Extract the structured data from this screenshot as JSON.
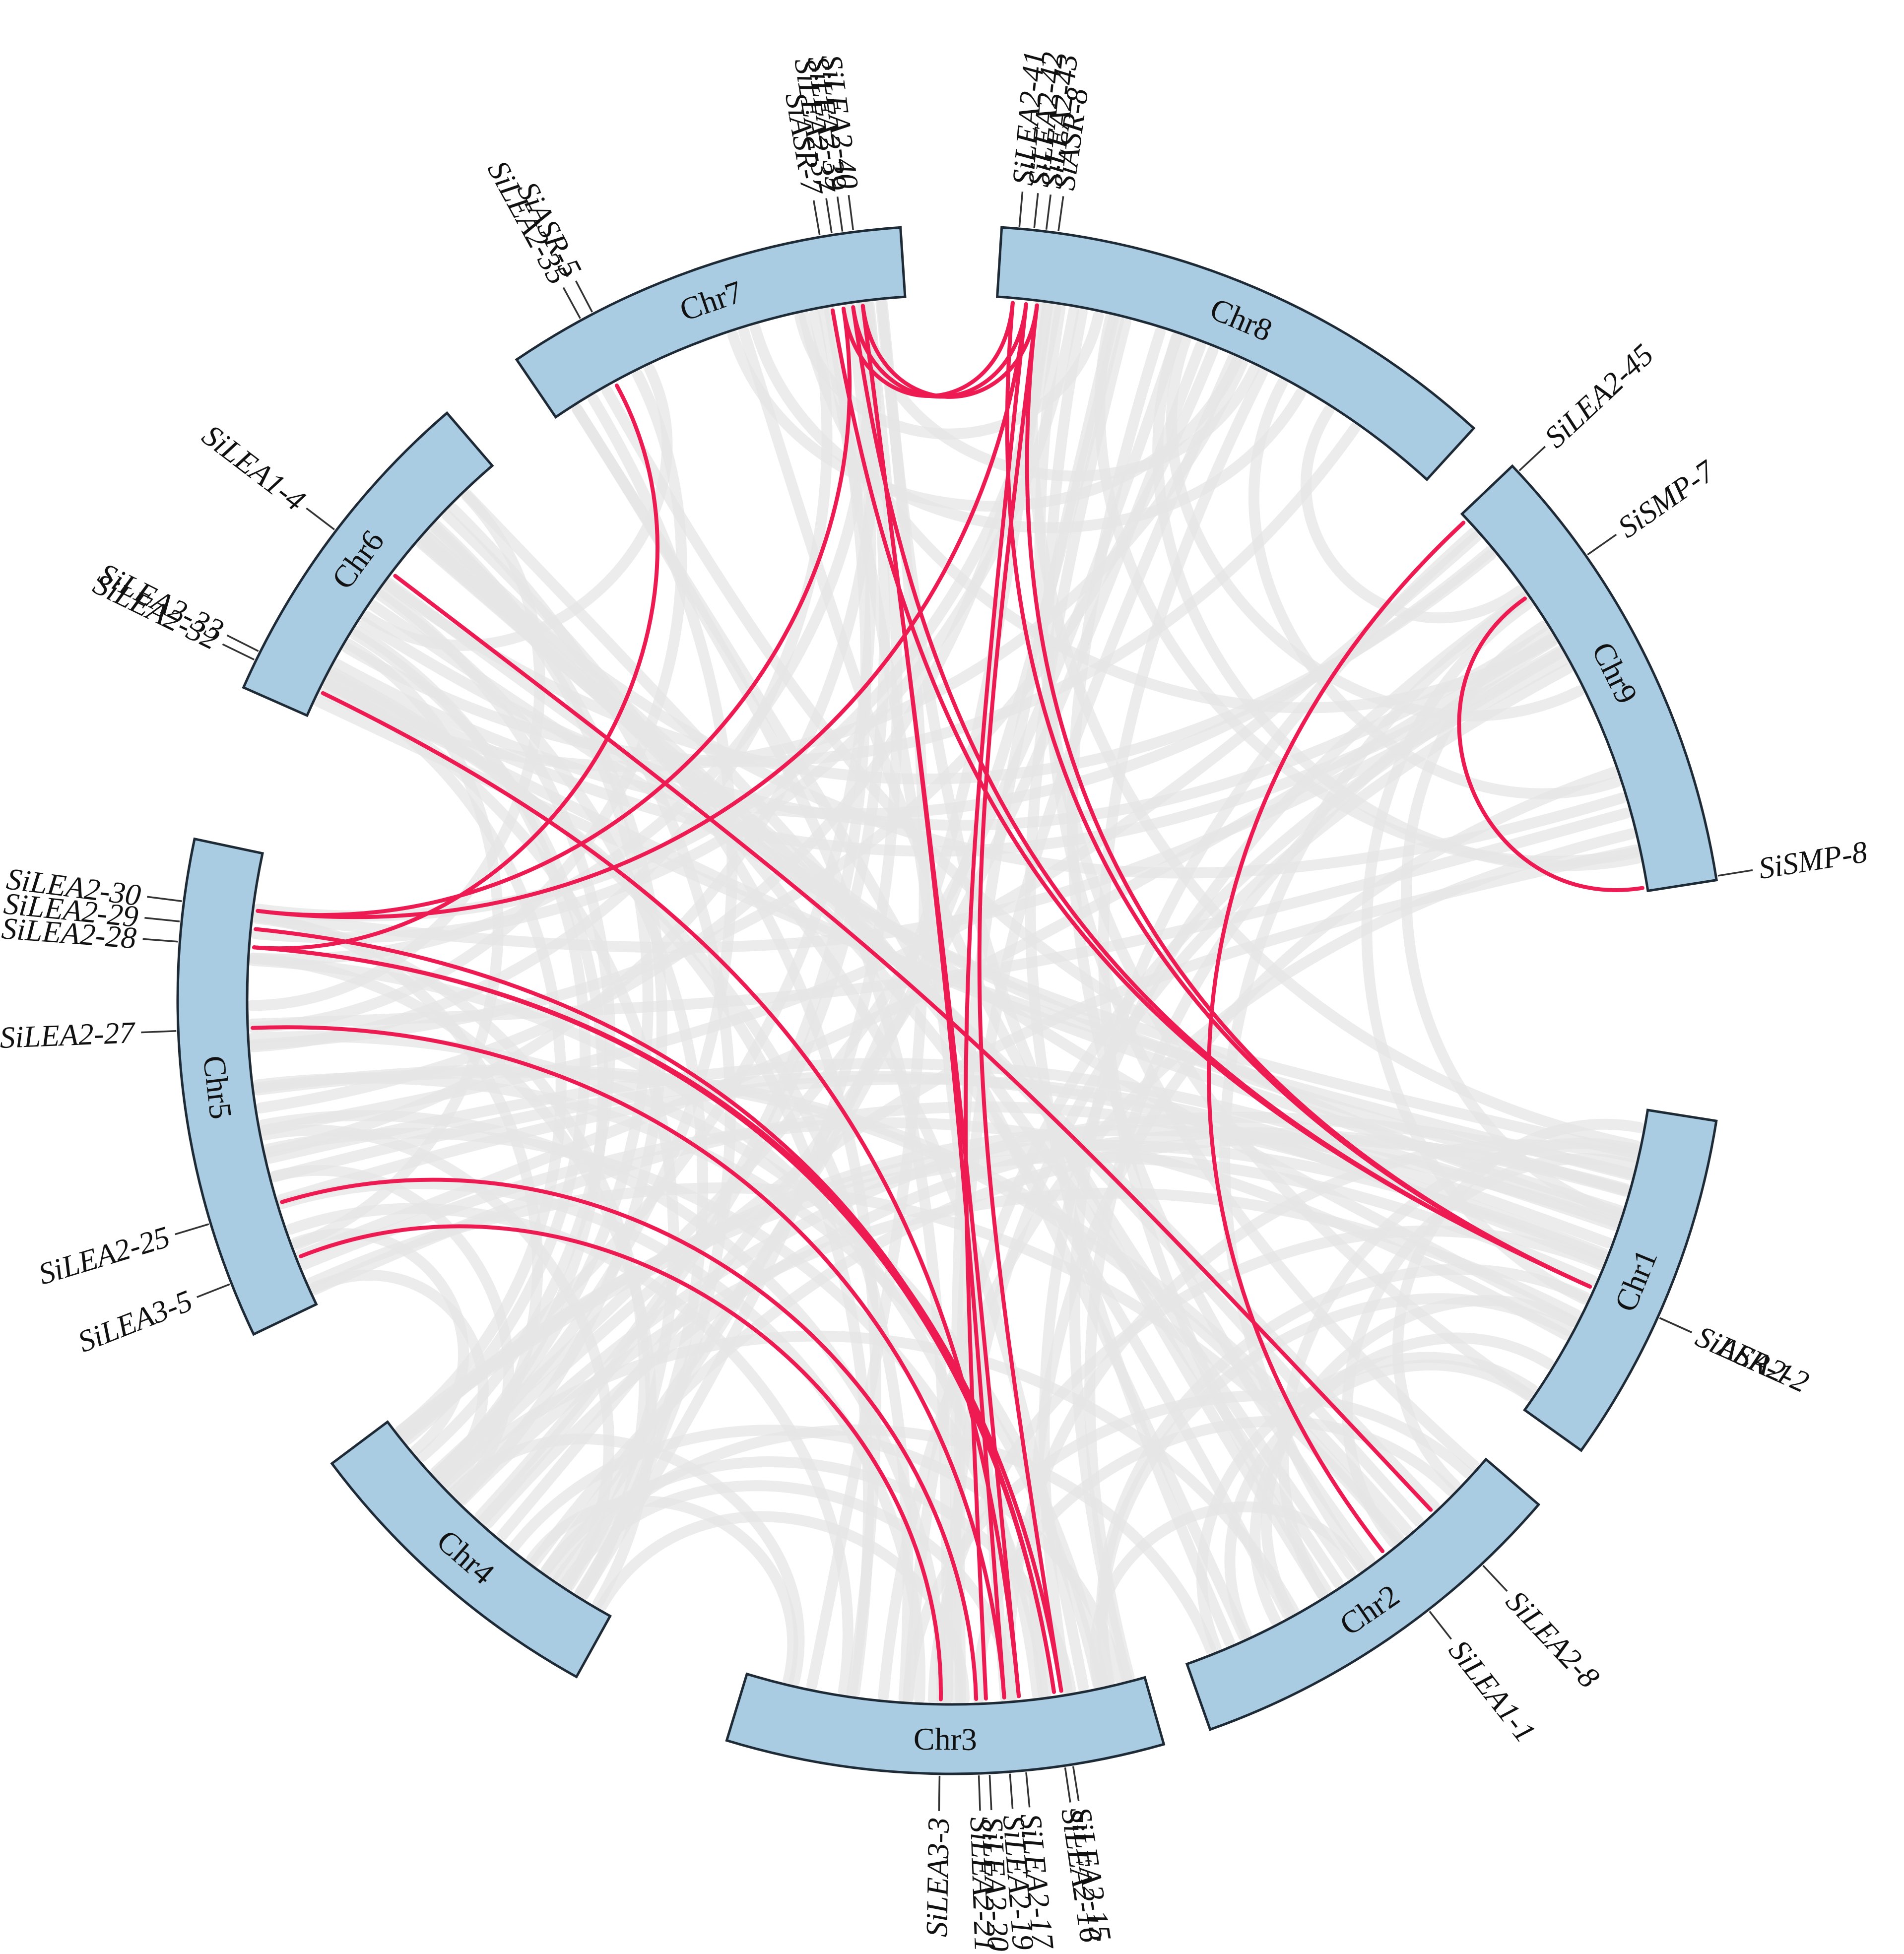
{
  "diagram": {
    "colors": {
      "chromosome_fill": "#a9cce3",
      "chromosome_stroke": "#1e2a36",
      "highlight_link": "#ee1b53",
      "background_link": "#e6e6e6"
    },
    "chromosomes": [
      {
        "id": "chr1",
        "label": "Chr1",
        "start": 99.0,
        "end": 125.6
      },
      {
        "id": "chr2",
        "label": "Chr2",
        "start": 130.7,
        "end": 160.5
      },
      {
        "id": "chr3",
        "label": "Chr3",
        "start": 164.1,
        "end": 196.9
      },
      {
        "id": "chr4",
        "label": "Chr4",
        "start": 209.0,
        "end": 233.2
      },
      {
        "id": "chr5",
        "label": "Chr5",
        "start": 244.4,
        "end": 282.0
      },
      {
        "id": "chr6",
        "label": "Chr6",
        "start": 293.8,
        "end": 319.3
      },
      {
        "id": "chr7",
        "label": "Chr7",
        "start": 325.8,
        "end": 356.2
      },
      {
        "id": "chr8",
        "label": "Chr8",
        "start": 3.7,
        "end": 42.4
      },
      {
        "id": "chr9",
        "label": "Chr9",
        "start": 46.4,
        "end": 81.1
      }
    ],
    "genes": [
      {
        "id": "SiLEA2-35",
        "label": "SiLEA2-35",
        "angle": 331.4
      },
      {
        "id": "SiASR-5",
        "label": "SiASR-5",
        "angle": 332.4
      },
      {
        "id": "SiASR-7",
        "label": "SiASR-7",
        "angle": 350.2
      },
      {
        "id": "SiLEA2-37",
        "label": "SiLEA2-37",
        "angle": 351.1
      },
      {
        "id": "SiLEA2-39",
        "label": "SiLEA2-39",
        "angle": 351.9
      },
      {
        "id": "SiLEA2-40",
        "label": "SiLEA2-40",
        "angle": 352.7
      },
      {
        "id": "SiLEA2-41",
        "label": "SiLEA2-41",
        "angle": 5.0
      },
      {
        "id": "SiLEA2-42",
        "label": "SiLEA2-42",
        "angle": 6.1
      },
      {
        "id": "SiLEA2-43",
        "label": "SiLEA2-43",
        "angle": 7.0
      },
      {
        "id": "SiASR-8",
        "label": "SiASR-8",
        "angle": 7.9
      },
      {
        "id": "SiLEA2-45",
        "label": "SiLEA2-45",
        "angle": 47.0
      },
      {
        "id": "SiSMP-7",
        "label": "SiSMP-7",
        "angle": 55.0
      },
      {
        "id": "SiSMP-8",
        "label": "SiSMP-8",
        "angle": 80.8
      },
      {
        "id": "SiLEA2-2",
        "label": "SiLEA2-2",
        "angle": 114.2
      },
      {
        "id": "SiASR-1",
        "label": "SiASR-1",
        "angle": 114.2
      },
      {
        "id": "SiLEA2-8",
        "label": "SiLEA2-8",
        "angle": 136.8
      },
      {
        "id": "SiLEA1-1",
        "label": "SiLEA1-1",
        "angle": 142.0
      },
      {
        "id": "SiLEA2-15",
        "label": "SiLEA2-15",
        "angle": 171.0
      },
      {
        "id": "SiLEA2-16",
        "label": "SiLEA2-16",
        "angle": 171.6
      },
      {
        "id": "SiLEA2-17",
        "label": "SiLEA2-17",
        "angle": 174.5
      },
      {
        "id": "SiLEA2-19",
        "label": "SiLEA2-19",
        "angle": 175.7
      },
      {
        "id": "SiLEA2-20",
        "label": "SiLEA2-20",
        "angle": 177.2
      },
      {
        "id": "SiLEA2-21",
        "label": "SiLEA2-21",
        "angle": 178.0
      },
      {
        "id": "SiLEA3-3",
        "label": "SiLEA3-3",
        "angle": 180.9
      },
      {
        "id": "SiLEA3-5",
        "label": "SiLEA3-5",
        "angle": 248.5
      },
      {
        "id": "SiLEA2-25",
        "label": "SiLEA2-25",
        "angle": 253.2
      },
      {
        "id": "SiLEA2-27",
        "label": "SiLEA2-27",
        "angle": 267.7
      },
      {
        "id": "SiLEA2-28",
        "label": "SiLEA2-28",
        "angle": 274.3
      },
      {
        "id": "SiLEA2-29",
        "label": "SiLEA2-29",
        "angle": 275.8
      },
      {
        "id": "SiLEA2-30",
        "label": "SiLEA2-30",
        "angle": 277.3
      },
      {
        "id": "SiLEA2-32",
        "label": "SiLEA2-32",
        "angle": 296.0
      },
      {
        "id": "SiLEA2-33",
        "label": "SiLEA2-33",
        "angle": 296.7
      },
      {
        "id": "SiLEA1-4",
        "label": "SiLEA1-4",
        "angle": 307.3
      }
    ],
    "collinear_pairs": [
      [
        "SiLEA2-45",
        "SiLEA1-1"
      ],
      [
        "SiSMP-7",
        "SiSMP-8"
      ],
      [
        "SiASR-7",
        "SiLEA2-2"
      ],
      [
        "SiLEA2-37",
        "SiLEA2-30"
      ],
      [
        "SiLEA2-37",
        "SiLEA2-41"
      ],
      [
        "SiLEA2-39",
        "SiLEA2-42"
      ],
      [
        "SiLEA2-39",
        "SiLEA2-2"
      ],
      [
        "SiLEA2-40",
        "SiLEA2-43"
      ],
      [
        "SiLEA2-40",
        "SiLEA2-17"
      ],
      [
        "SiLEA2-40",
        "SiLEA2-19"
      ],
      [
        "SiLEA2-41",
        "SiLEA2-2"
      ],
      [
        "SiLEA2-42",
        "SiLEA2-20"
      ],
      [
        "SiLEA2-42",
        "SiLEA2-30"
      ],
      [
        "SiLEA2-43",
        "SiLEA2-15"
      ],
      [
        "SiLEA2-43",
        "SiLEA2-2"
      ],
      [
        "SiLEA2-29",
        "SiLEA2-16"
      ],
      [
        "SiLEA2-28",
        "SiLEA2-16"
      ],
      [
        "SiLEA2-28",
        "SiLEA2-15"
      ],
      [
        "SiLEA2-27",
        "SiLEA2-19"
      ],
      [
        "SiLEA2-25",
        "SiLEA2-21"
      ],
      [
        "SiLEA3-5",
        "SiLEA3-3"
      ],
      [
        "SiLEA2-32",
        "SiLEA2-17"
      ],
      [
        "SiLEA1-4",
        "SiLEA2-8"
      ],
      [
        "SiLEA2-35",
        "SiLEA2-28"
      ]
    ]
  }
}
